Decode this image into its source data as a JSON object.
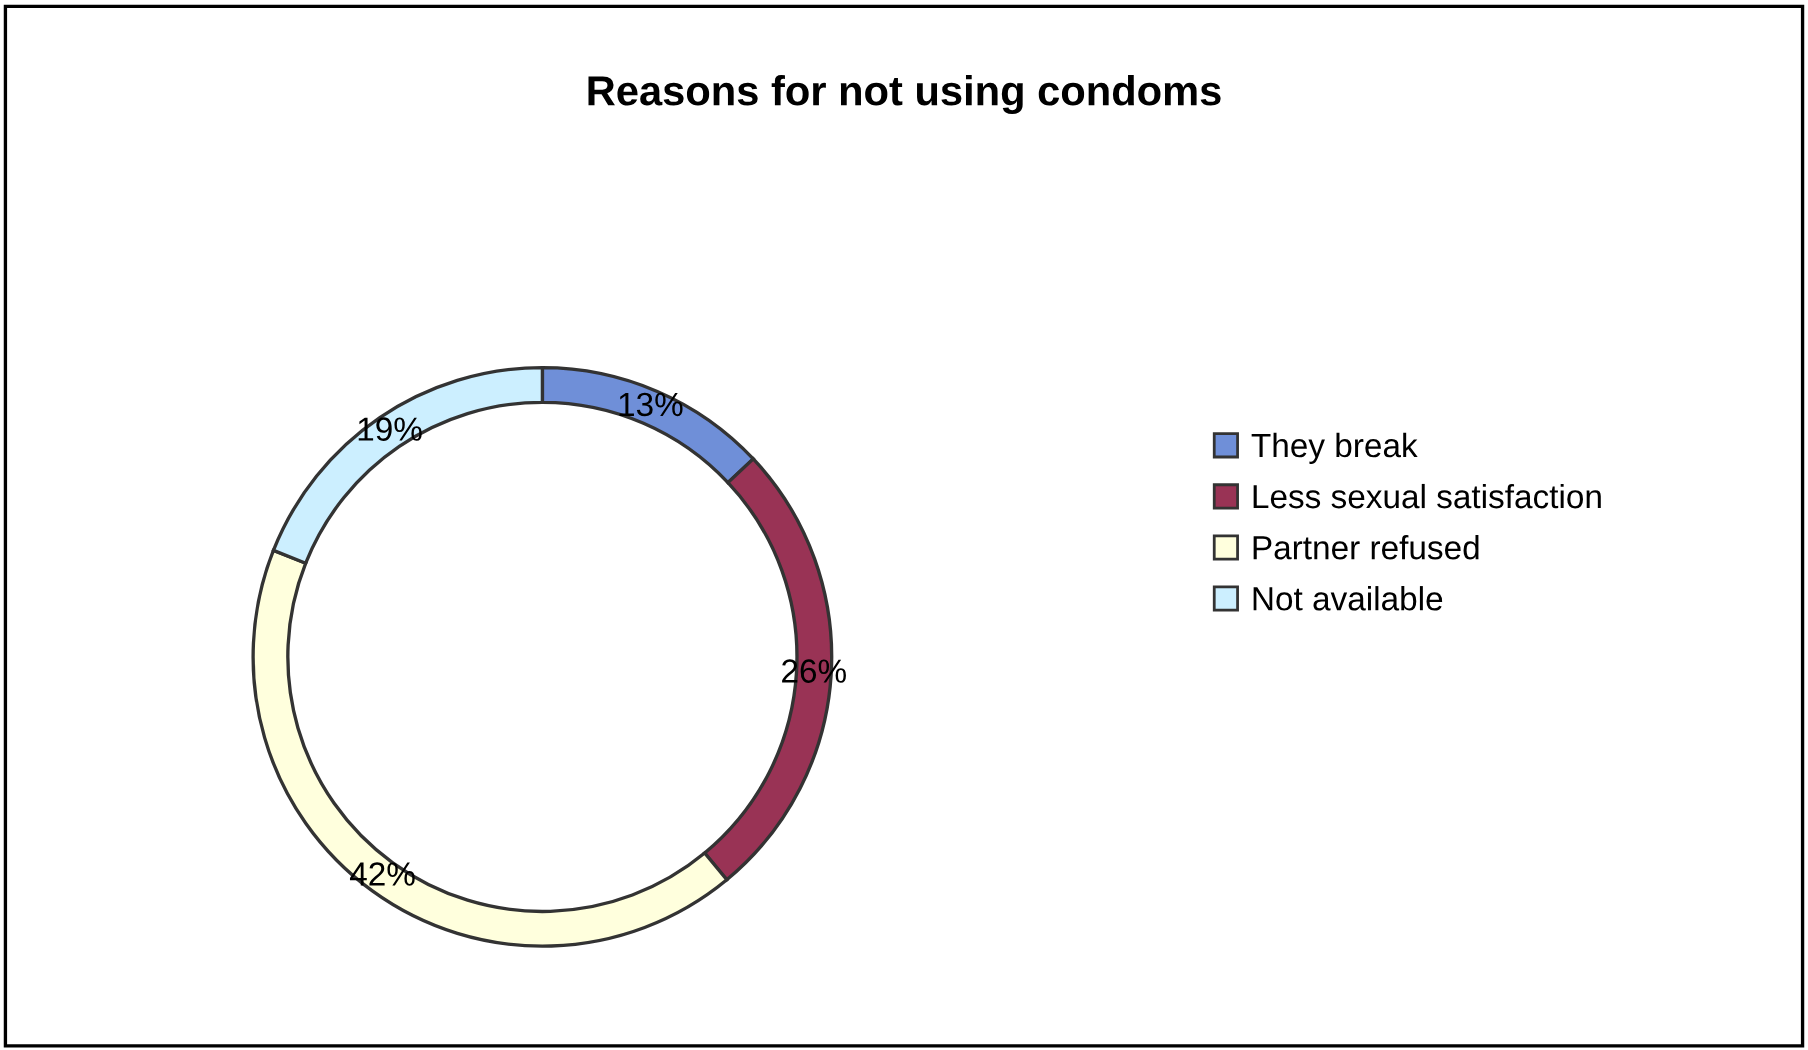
{
  "chart_data": {
    "type": "donut",
    "title": "Reasons for not using condoms",
    "categories": [
      "They break",
      "Less sexual satisfaction",
      "Partner refused",
      "Not available"
    ],
    "values": [
      13,
      26,
      42,
      19
    ],
    "colors": [
      "#6f8fd8",
      "#993355",
      "#ffffdd",
      "#ccefff"
    ],
    "value_labels": [
      "13%",
      "26%",
      "42%",
      "19%"
    ],
    "legend": "right"
  }
}
